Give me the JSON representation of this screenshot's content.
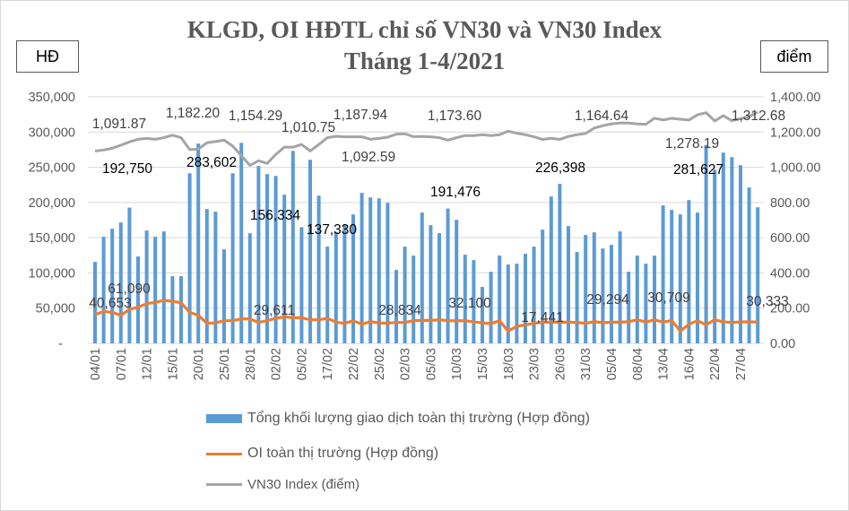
{
  "chart_data": {
    "type": "bar+line",
    "title": "KLGD, OI HĐTL chỉ số VN30 và VN30 Index",
    "subtitle": "Tháng 1-4/2021",
    "left_axis_unit": "HĐ",
    "right_axis_unit": "điểm",
    "left_ylim": [
      0,
      350000
    ],
    "right_ylim": [
      0,
      1400
    ],
    "left_ticks": [
      "-",
      "50,000",
      "100,000",
      "150,000",
      "200,000",
      "250,000",
      "300,000",
      "350,000"
    ],
    "right_ticks": [
      "0.00",
      "200.00",
      "400.00",
      "600.00",
      "800.00",
      "1,000.00",
      "1,200.00",
      "1,400.00"
    ],
    "grid": true,
    "legend_position": "bottom",
    "x_tick_labels": [
      "04/01",
      "07/01",
      "12/01",
      "15/01",
      "20/01",
      "25/01",
      "28/01",
      "02/02",
      "05/02",
      "17/02",
      "22/02",
      "25/02",
      "02/03",
      "05/03",
      "10/03",
      "15/03",
      "18/03",
      "23/03",
      "26/03",
      "31/03",
      "05/04",
      "08/04",
      "13/04",
      "16/04",
      "22/04",
      "27/04"
    ],
    "series": [
      {
        "name": "Tổng khối lượng giao dịch toàn thị trường (Hợp đồng)",
        "type": "bar",
        "axis": "left",
        "color": "#5b9bd5",
        "values": [
          115700,
          151300,
          162700,
          171600,
          192750,
          123300,
          160200,
          151300,
          158900,
          95300,
          95300,
          241500,
          283602,
          190700,
          186900,
          133500,
          241500,
          284700,
          156334,
          251700,
          240300,
          237700,
          211000,
          273300,
          165000,
          260600,
          209700,
          137330,
          158000,
          168000,
          183000,
          213600,
          207200,
          205900,
          199600,
          104200,
          137300,
          124600,
          185600,
          167800,
          156400,
          191476,
          175400,
          125800,
          118200,
          80100,
          101700,
          124600,
          111900,
          113100,
          127100,
          137300,
          161400,
          208500,
          226398,
          166500,
          129700,
          153800,
          157600,
          134700,
          139800,
          158900,
          101700,
          124600,
          113100,
          124600,
          195800,
          189400,
          183100,
          203400,
          185600,
          281627,
          246600,
          270800,
          264400,
          253000,
          221200,
          193200
        ]
      },
      {
        "name": "OI toàn thị trường (Hợp đồng)",
        "type": "line",
        "axis": "left",
        "color": "#ed7d31",
        "values": [
          40653,
          45300,
          44100,
          39800,
          48300,
          51300,
          56400,
          58100,
          61090,
          59700,
          57600,
          44100,
          39800,
          28400,
          29200,
          32200,
          32200,
          34700,
          34700,
          29611,
          32200,
          35600,
          37700,
          36400,
          36400,
          33500,
          33500,
          35600,
          30100,
          28400,
          32200,
          27100,
          30900,
          28834,
          28800,
          29700,
          29700,
          32200,
          32600,
          32600,
          33500,
          32200,
          32100,
          32200,
          30500,
          29200,
          28000,
          32200,
          17441,
          24200,
          26300,
          28400,
          30100,
          30100,
          30100,
          30100,
          29700,
          28400,
          30900,
          29294,
          30100,
          30100,
          30709,
          33500,
          30100,
          33500,
          30100,
          32600,
          17400,
          27100,
          32200,
          26300,
          33500,
          30500,
          29700,
          30500,
          30500,
          30333
        ]
      },
      {
        "name": "VN30 Index (điểm)",
        "type": "line",
        "axis": "right",
        "color": "#a5a5a5",
        "values": [
          1091.87,
          1098,
          1108,
          1125,
          1144,
          1159,
          1164,
          1159,
          1168,
          1182.2,
          1168,
          1100,
          1103,
          1139,
          1146,
          1154.29,
          1120,
          1066,
          1010.75,
          1037,
          1022,
          1073,
          1114,
          1114,
          1129,
          1092.59,
          1129,
          1168,
          1176,
          1173,
          1173,
          1173,
          1159,
          1164,
          1171,
          1187.94,
          1190,
          1173.6,
          1175,
          1173,
          1168,
          1154,
          1168,
          1180,
          1180,
          1185,
          1180,
          1185,
          1205,
          1193,
          1185,
          1173,
          1158,
          1164.64,
          1158,
          1175,
          1185,
          1192,
          1222,
          1236,
          1246,
          1251,
          1251,
          1246,
          1244,
          1278.19,
          1269,
          1278,
          1273,
          1268,
          1298,
          1310,
          1263,
          1293,
          1264,
          1276,
          1288,
          1312.68
        ]
      }
    ],
    "data_labels": [
      {
        "series": 0,
        "index": 4,
        "text": "192,750"
      },
      {
        "series": 0,
        "index": 12,
        "text": "283,602"
      },
      {
        "series": 0,
        "index": 18,
        "text": "156,334"
      },
      {
        "series": 0,
        "index": 27,
        "text": "137,330"
      },
      {
        "series": 0,
        "index": 41,
        "text": "191,476"
      },
      {
        "series": 0,
        "index": 54,
        "text": "226,398"
      },
      {
        "series": 0,
        "index": 71,
        "text": "281,627"
      },
      {
        "series": 1,
        "index": 0,
        "text": "40,653"
      },
      {
        "series": 1,
        "index": 8,
        "text": "61,090"
      },
      {
        "series": 1,
        "index": 19,
        "text": "29,611"
      },
      {
        "series": 1,
        "index": 33,
        "text": "28,834"
      },
      {
        "series": 1,
        "index": 42,
        "text": "32,100"
      },
      {
        "series": 1,
        "index": 48,
        "text": "17,441"
      },
      {
        "series": 1,
        "index": 59,
        "text": "29,294"
      },
      {
        "series": 1,
        "index": 62,
        "text": "30,709"
      },
      {
        "series": 1,
        "index": 77,
        "text": "30,333"
      },
      {
        "series": 2,
        "index": 0,
        "text": "1,091.87"
      },
      {
        "series": 2,
        "index": 9,
        "text": "1,182.20"
      },
      {
        "series": 2,
        "index": 15,
        "text": "1,154.29"
      },
      {
        "series": 2,
        "index": 18,
        "text": "1,010.75"
      },
      {
        "series": 2,
        "index": 35,
        "text": "1,187.94"
      },
      {
        "series": 2,
        "index": 25,
        "text": "1,092.59"
      },
      {
        "series": 2,
        "index": 37,
        "text": "1,173.60"
      },
      {
        "series": 2,
        "index": 53,
        "text": "1,164.64"
      },
      {
        "series": 2,
        "index": 65,
        "text": "1,278.19"
      },
      {
        "series": 2,
        "index": 77,
        "text": "1,312.68"
      }
    ]
  }
}
